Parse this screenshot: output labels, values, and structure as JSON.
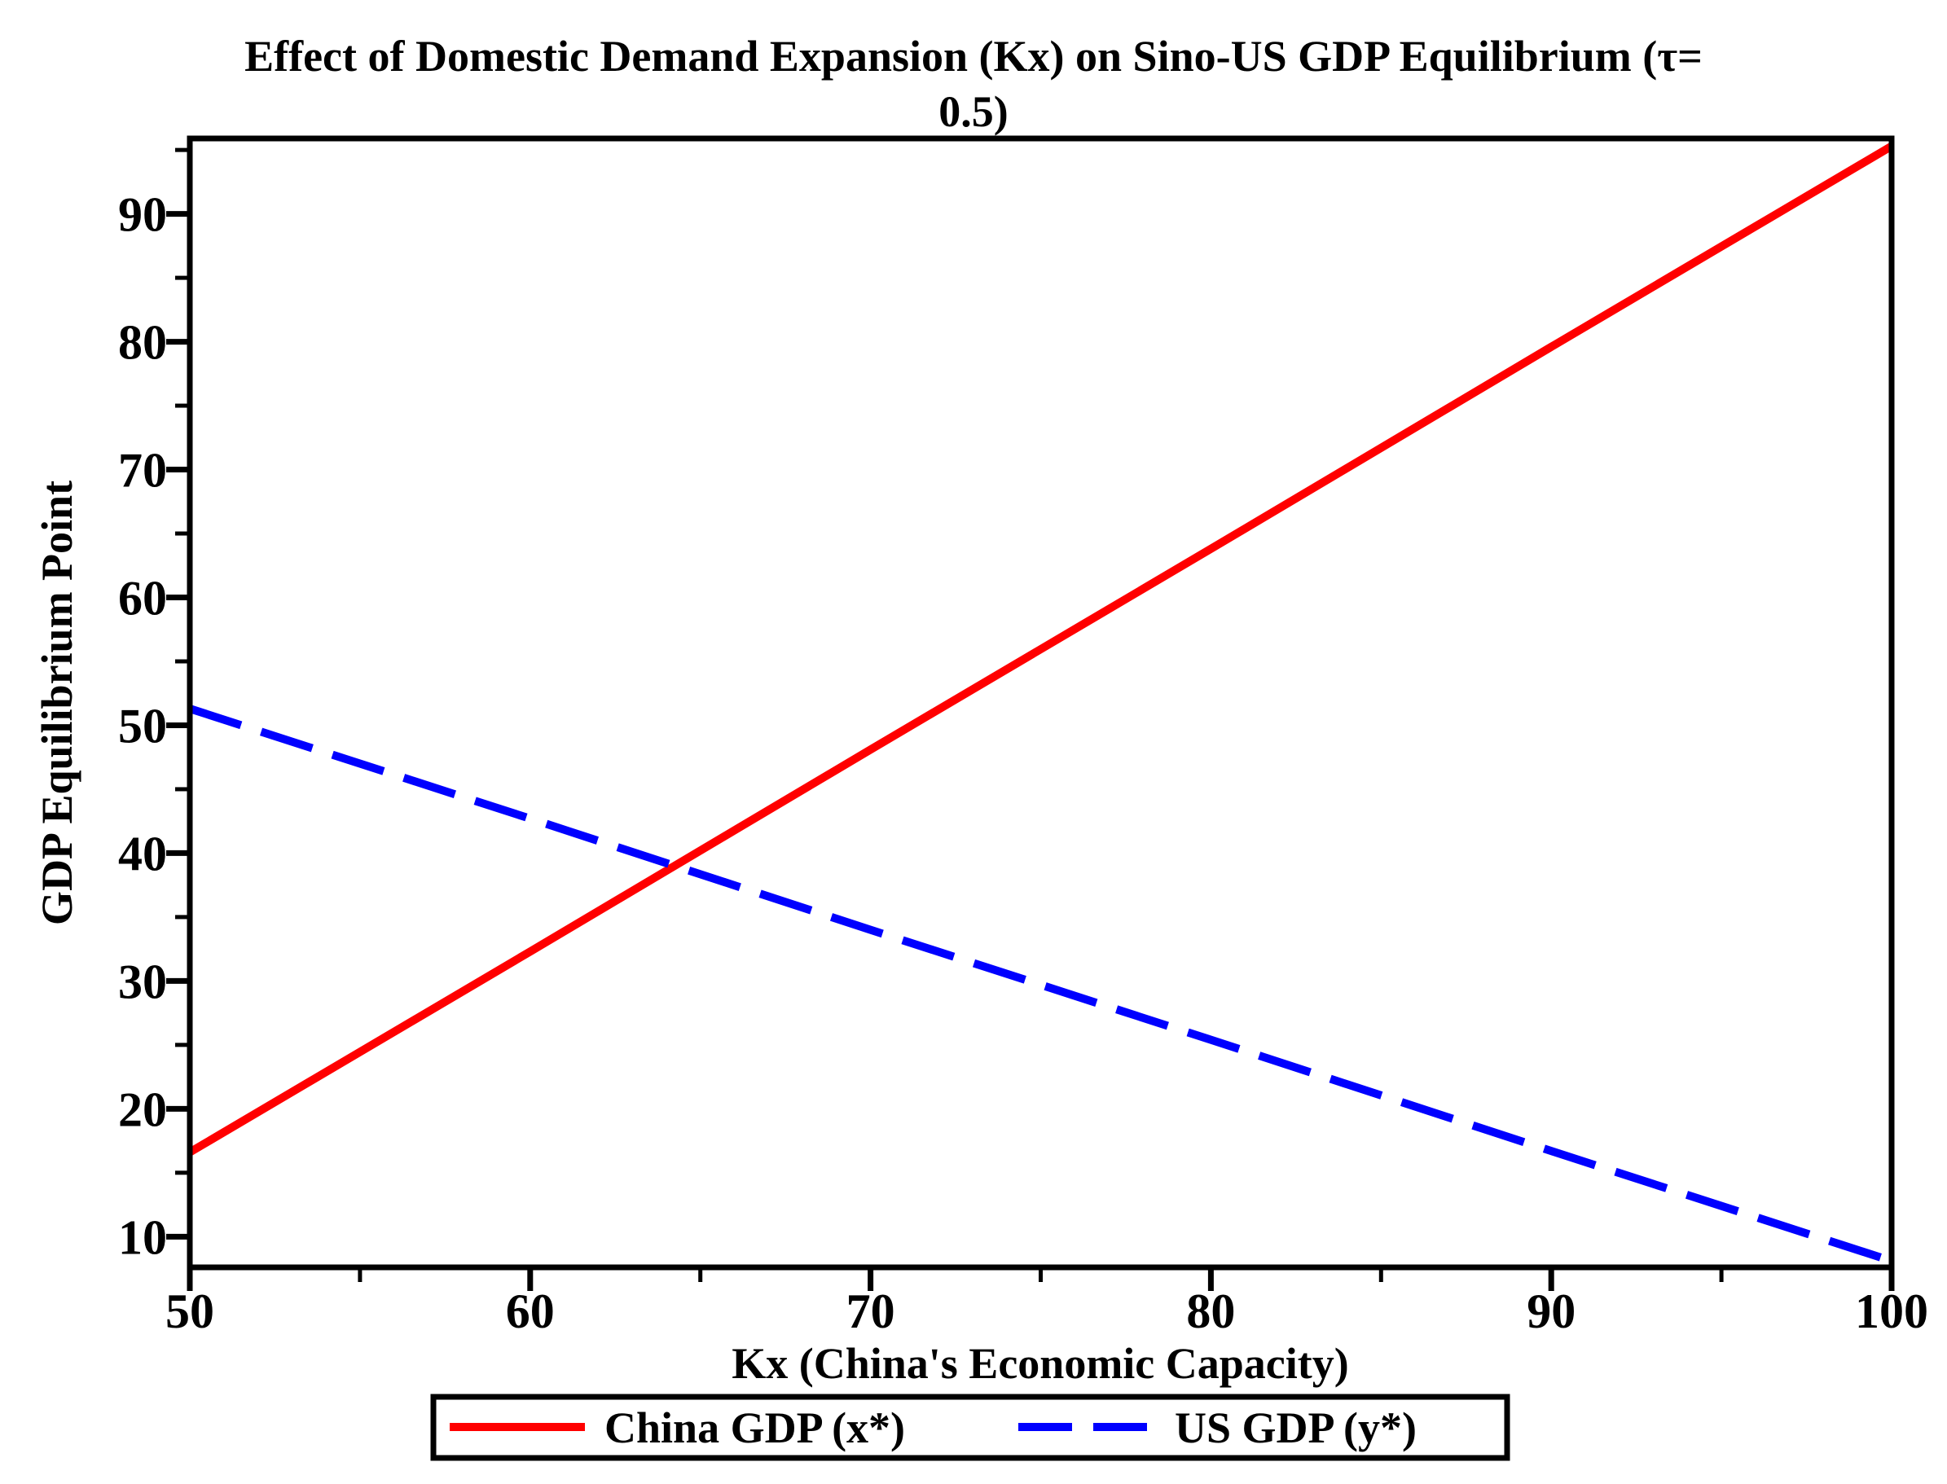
{
  "title": {
    "line1": "Effect of Domestic Demand Expansion (Kx) on Sino-US GDP Equilibrium (τ=",
    "line2": "0.5)"
  },
  "chart_data": {
    "type": "line",
    "title": "Effect of Domestic Demand Expansion (Kx) on Sino-US GDP Equilibrium (τ= 0.5)",
    "tau": "0.5",
    "xlabel": "Kx (China's Economic Capacity)",
    "ylabel": "GDP Equilibrium Point",
    "x": [
      50,
      60,
      70,
      80,
      90,
      100
    ],
    "series": [
      {
        "name": "China GDP (x*)",
        "color": "#ff0000",
        "line_style": "solid",
        "values": [
          16.6,
          32.3,
          48.1,
          63.8,
          79.6,
          95.3
        ]
      },
      {
        "name": "US GDP (y*)",
        "color": "#0000ff",
        "line_style": "dashed",
        "values": [
          51.3,
          42.7,
          34.0,
          25.4,
          16.7,
          8.1
        ]
      }
    ],
    "xlim": [
      50,
      100
    ],
    "ylim": [
      7.6,
      95.9
    ],
    "x_major_ticks": [
      50,
      60,
      70,
      80,
      90,
      100
    ],
    "x_minor_ticks": [
      55,
      65,
      75,
      85,
      95
    ],
    "y_major_ticks": [
      10,
      20,
      30,
      40,
      50,
      60,
      70,
      80,
      90
    ],
    "y_minor_ticks": [
      15,
      25,
      35,
      45,
      55,
      65,
      75,
      85,
      95
    ],
    "grid": false,
    "legend_position": "bottom-center"
  },
  "legend": {
    "items": [
      {
        "label": "China GDP (x*)",
        "color": "#ff0000",
        "style": "solid"
      },
      {
        "label": "US GDP (y*)",
        "color": "#0000ff",
        "style": "dashed"
      }
    ]
  },
  "colors": {
    "background": "#ffffff",
    "axis": "#000000",
    "china_line": "#ff0000",
    "us_line": "#0000ff"
  }
}
